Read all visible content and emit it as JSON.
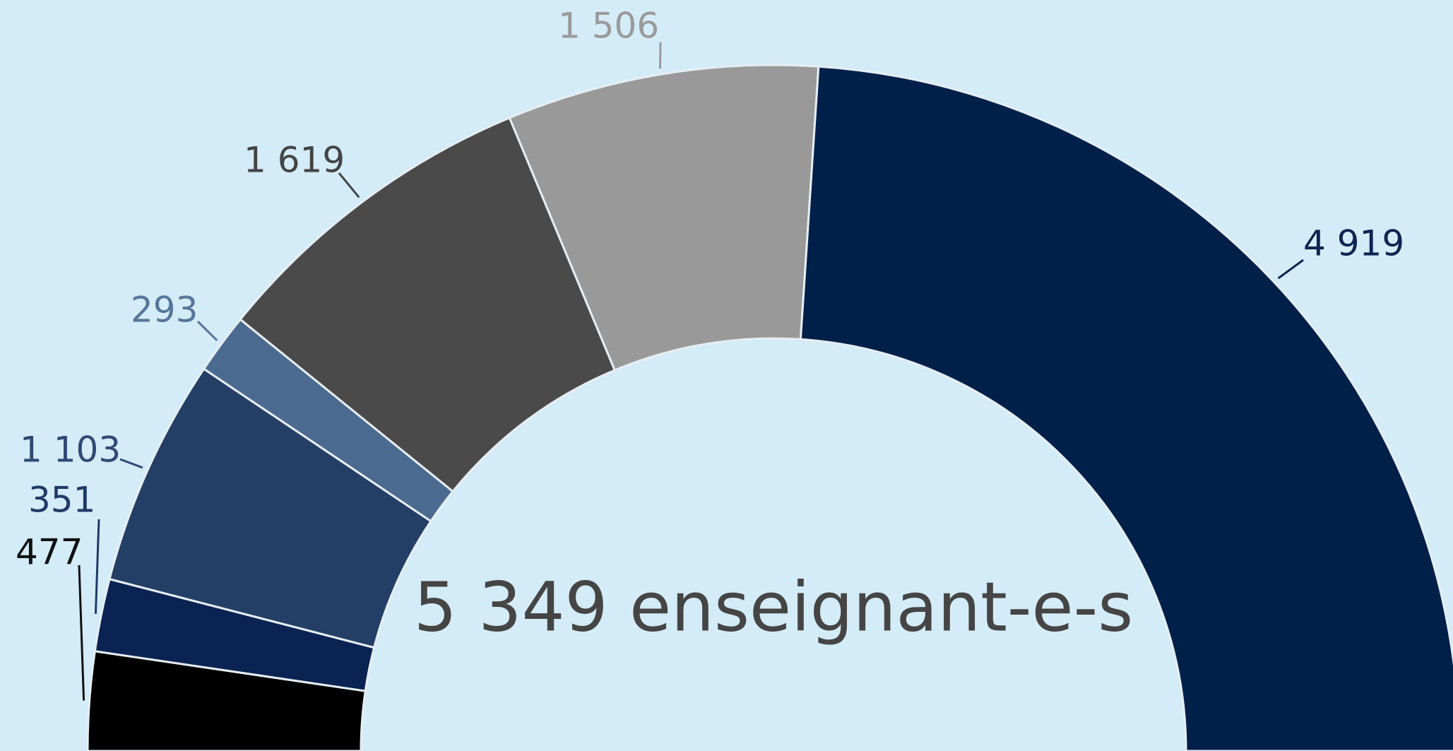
{
  "chart_data": {
    "type": "donut",
    "center_label": "5 349 enseignant-e-s",
    "values": [
      477,
      351,
      1103,
      293,
      1619,
      1506,
      4919
    ],
    "value_labels": [
      "477",
      "351",
      "1 103",
      "293",
      "1 619",
      "1 506",
      "4 919"
    ],
    "colors": [
      "#000000",
      "#0b2352",
      "#243f66",
      "#4b6a8f",
      "#4a4a4a",
      "#999999",
      "#00204a"
    ],
    "label_colors": [
      "#111111",
      "#1f3a66",
      "#2e4a74",
      "#56769a",
      "#444444",
      "#9a9a9a",
      "#0d2550"
    ]
  }
}
